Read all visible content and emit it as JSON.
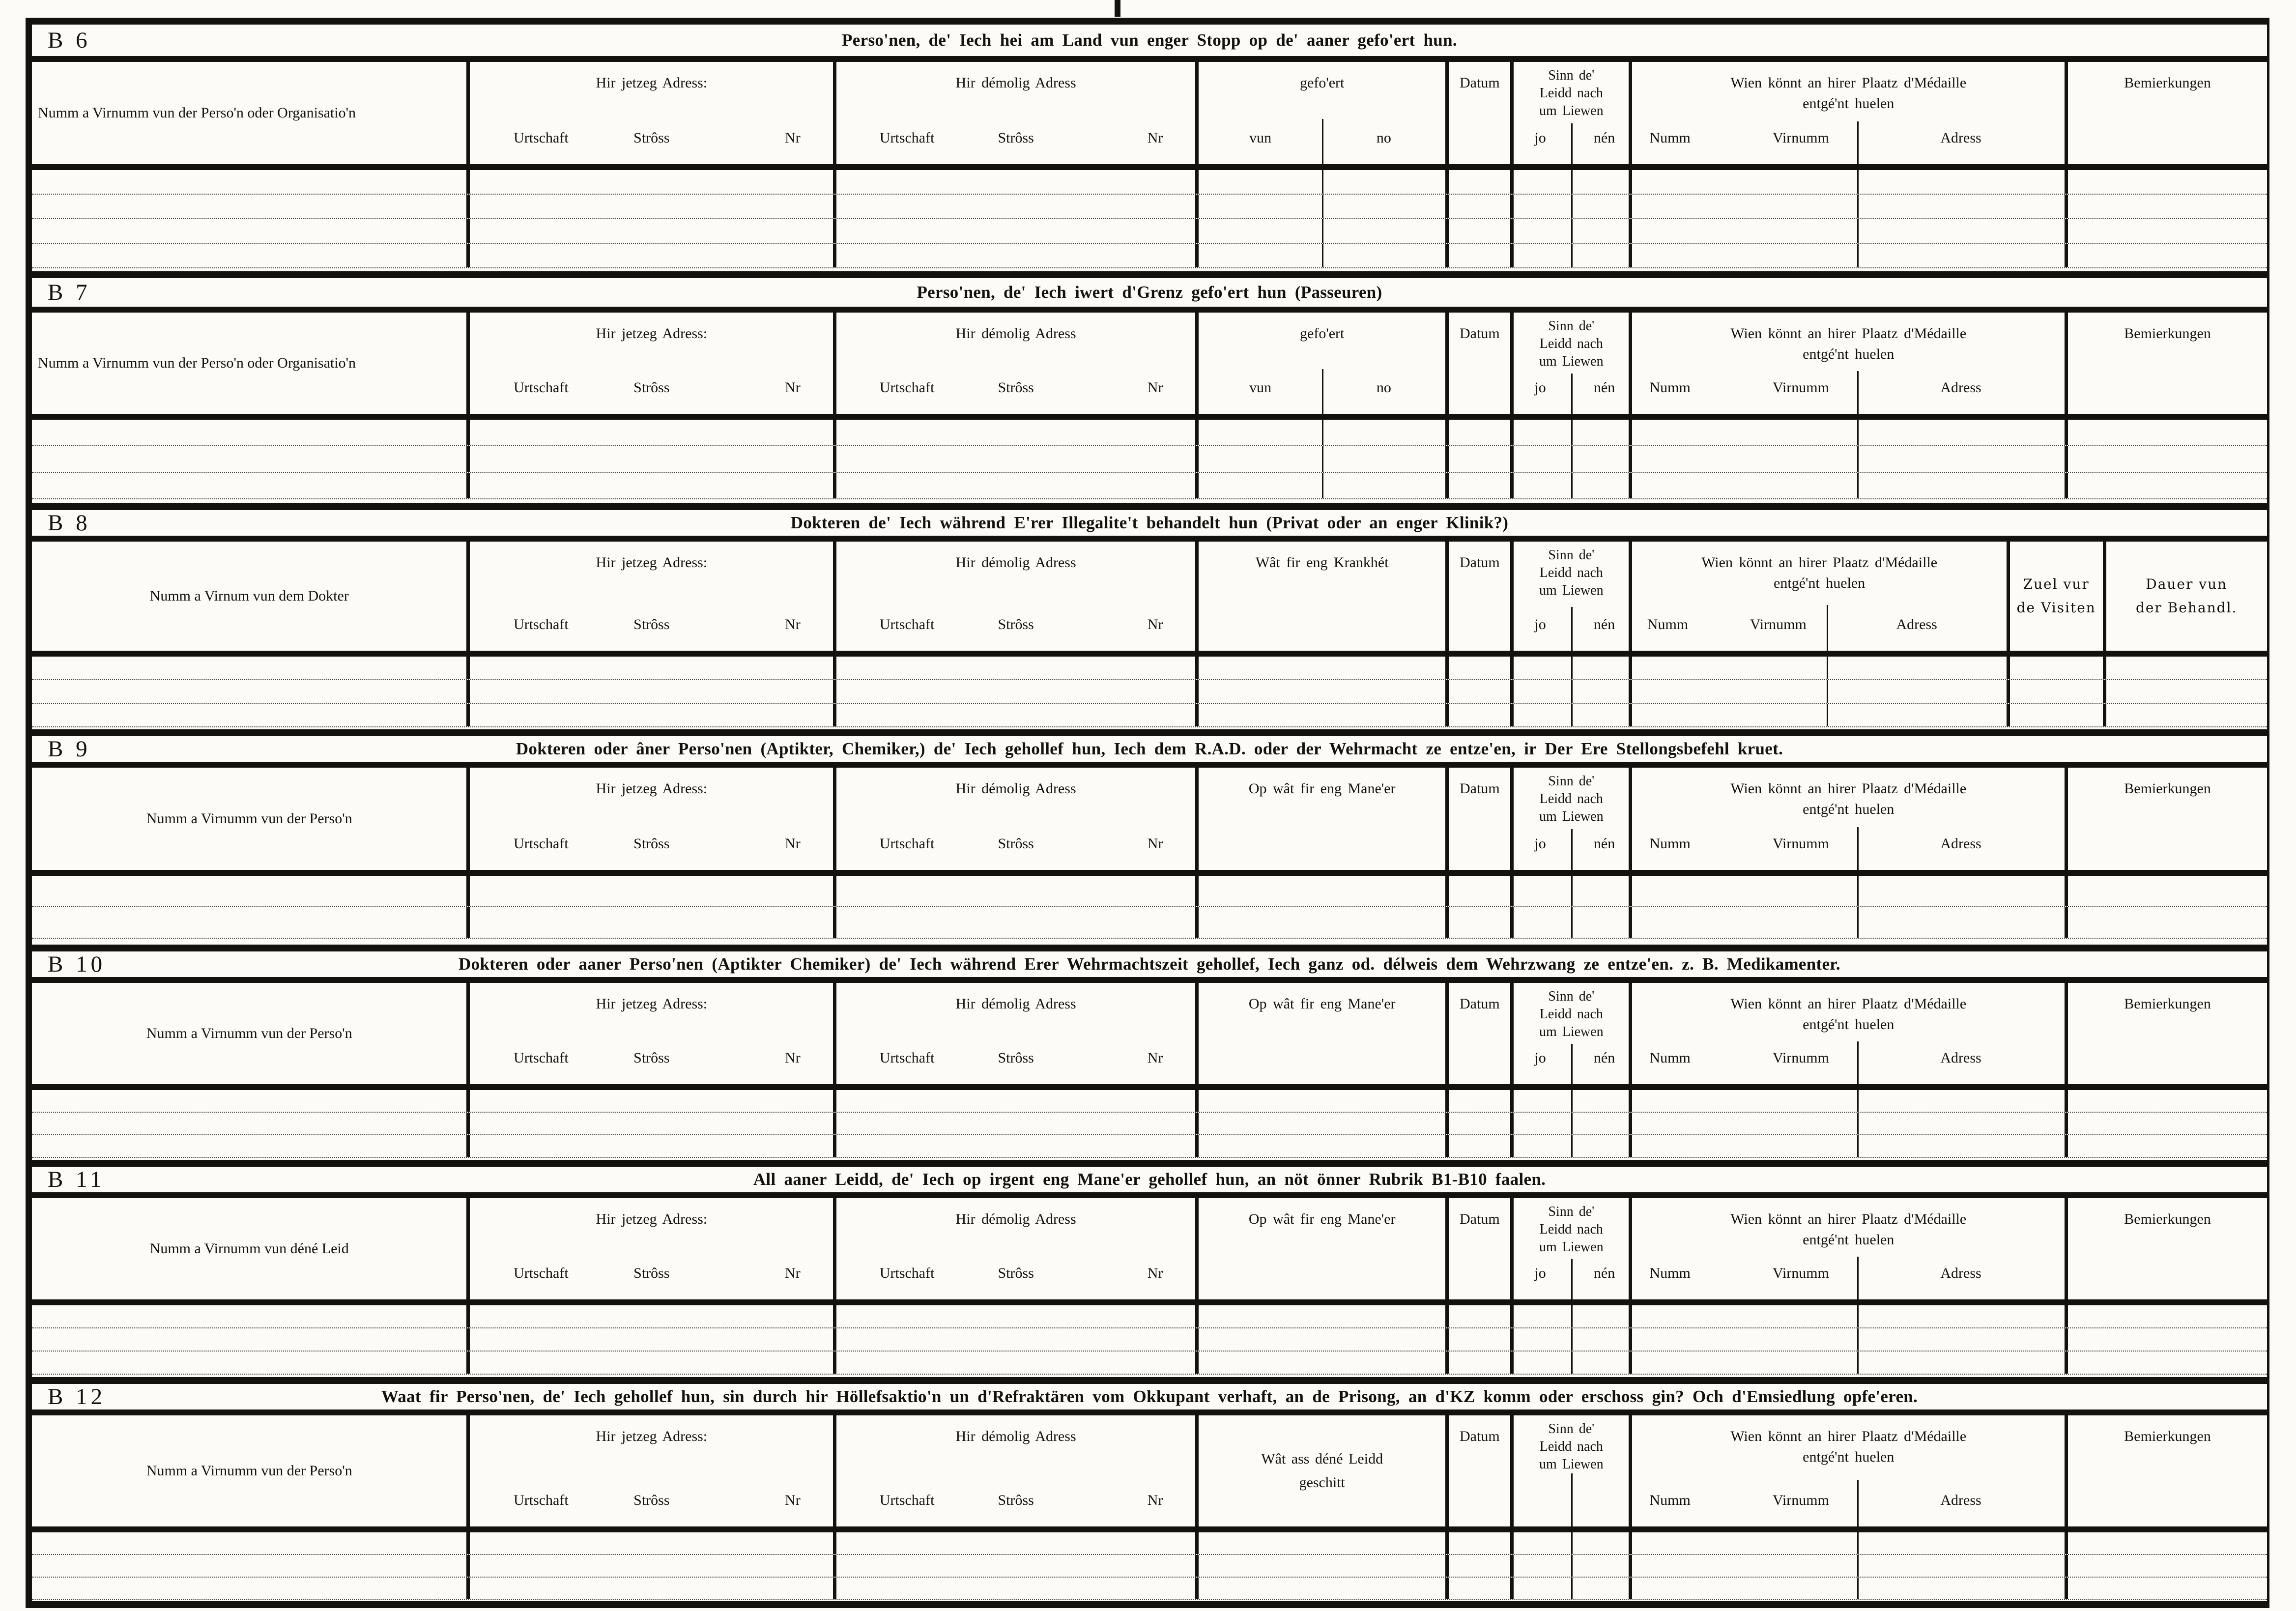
{
  "page": {
    "type": "scanned-questionnaire-form",
    "language": "Luxembourgish",
    "ink_color": "#14120f",
    "paper_color": "#fcfbf7"
  },
  "labels": {
    "jetzeg_adress": "Hir jetzeg Adress:",
    "demolig_adress": "Hir démolig Adress",
    "urtschaft": "Urtschaft",
    "stross": "Strôss",
    "nr": "Nr",
    "datum": "Datum",
    "sinn_lines": [
      "Sinn de'",
      "Leidd nach",
      "um Liewen"
    ],
    "jo": "jo",
    "nen": "nén",
    "wien_lines": [
      "Wien könnt an hirer Plaatz d'Médaille",
      "entgé'nt huelen"
    ],
    "numm": "Numm",
    "virnumm": "Virnumm",
    "adress": "Adress",
    "bemierkungen": "Bemierkungen"
  },
  "sections": [
    {
      "id": "B 6",
      "title": "Perso'nen, de' Iech hei am Land vun enger Stopp op de' aaner gefo'ert hun.",
      "name_label": "Numm a Virnumm vun der Perso'n oder Organisatio'n",
      "middle_label": "gefo'ert",
      "middle_split": [
        "vun",
        "no"
      ],
      "right_label": "Bemierkungen",
      "rows": 4
    },
    {
      "id": "B 7",
      "title": "Perso'nen, de' Iech iwert d'Grenz gefo'ert hun (Passeuren)",
      "name_label": "Numm a Virnumm vun der Perso'n oder Organisatio'n",
      "middle_label": "gefo'ert",
      "middle_split": [
        "vun",
        "no"
      ],
      "right_label": "Bemierkungen",
      "rows": 3
    },
    {
      "id": "B 8",
      "title": "Dokteren de' Iech während E'rer Illegalite't behandelt hun (Privat oder an enger Klinik?)",
      "name_label": "Numm a Virnum vun dem Dokter",
      "middle_label": "Wât fir eng Krankhét",
      "extra_right": [
        [
          "Zuel vur",
          "de Visiten"
        ],
        [
          "Dauer vun",
          "der Behandl."
        ]
      ],
      "rows": 3
    },
    {
      "id": "B 9",
      "title": "Dokteren oder âner Perso'nen (Aptikter, Chemiker,) de' Iech gehollef hun, Iech dem R.A.D. oder der Wehrmacht ze entze'en, ir Der Ere Stellongsbefehl kruet.",
      "name_label": "Numm a Virnumm vun der Perso'n",
      "middle_label": "Op wât fir eng Mane'er",
      "right_label": "Bemierkungen",
      "rows": 2
    },
    {
      "id": "B 10",
      "title": "Dokteren oder aaner Perso'nen (Aptikter Chemiker) de' Iech während Erer Wehrmachtszeit gehollef, Iech ganz od. délweis dem Wehrzwang ze entze'en. z. B. Medikamenter.",
      "name_label": "Numm a Virnumm vun der Perso'n",
      "middle_label": "Op wât fir eng Mane'er",
      "right_label": "Bemierkungen",
      "rows": 3
    },
    {
      "id": "B 11",
      "title": "All aaner Leidd, de' Iech op irgent eng Mane'er gehollef hun, an nöt önner Rubrik B1-B10 faalen.",
      "name_label": "Numm a Virnumm vun déné Leid",
      "middle_label": "Op wât fir eng Mane'er",
      "right_label": "Bemierkungen",
      "rows": 3
    },
    {
      "id": "B 12",
      "title": "Waat fir Perso'nen, de' Iech gehollef hun, sin durch hir Höllefsaktio'n un d'Refraktären vom Okkupant verhaft, an de Prisong, an d'KZ komm oder erschoss gin? Och d'Emsiedlung opfe'eren.",
      "name_label": "Numm a Virnumm vun der Perso'n",
      "middle_lines": [
        "Wât ass déné Leidd",
        "geschitt"
      ],
      "right_label": "Bemierkungen",
      "sinn_jo_nen": false,
      "rows": 3
    }
  ]
}
